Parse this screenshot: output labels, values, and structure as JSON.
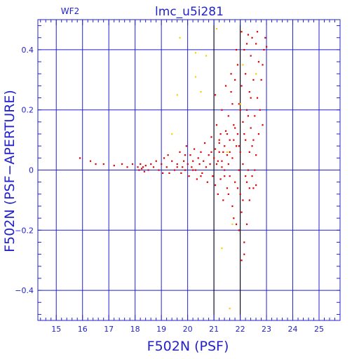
{
  "chart_data": {
    "type": "scatter",
    "title": "lmc_u5i281",
    "corner_label": "WF2",
    "xlabel": "F502N (PSF)",
    "ylabel": "F502N (PSF−APERTURE)",
    "xlim": [
      14.3,
      25.8
    ],
    "ylim": [
      -0.5,
      0.5
    ],
    "x_ticks": [
      15,
      16,
      17,
      18,
      19,
      20,
      21,
      22,
      23,
      24,
      25
    ],
    "y_ticks": [
      -0.4,
      -0.2,
      0,
      0.2,
      0.4
    ],
    "y_tick_labels": [
      "−0.4",
      "−0.2",
      "0",
      "0.2",
      "0.4"
    ],
    "grid": true,
    "reference_lines_x": [
      21.0,
      22.0
    ],
    "colors": {
      "axes": "#2222cc",
      "grid": "#2222cc",
      "reference": "#000000",
      "series_main": "#dd0000",
      "series_flagged": "#ffcc00"
    },
    "series": [
      {
        "color": "#dd0000",
        "points": [
          [
            15.9,
            0.04
          ],
          [
            16.3,
            0.03
          ],
          [
            16.5,
            0.02
          ],
          [
            16.8,
            0.02
          ],
          [
            17.2,
            0.015
          ],
          [
            17.5,
            0.02
          ],
          [
            17.7,
            0.01
          ],
          [
            17.9,
            0.02
          ],
          [
            18.1,
            0.01
          ],
          [
            18.15,
            0.0
          ],
          [
            18.2,
            0.02
          ],
          [
            18.25,
            0.005
          ],
          [
            18.3,
            0.01
          ],
          [
            18.35,
            -0.005
          ],
          [
            18.4,
            0.015
          ],
          [
            18.5,
            0.0
          ],
          [
            18.6,
            0.02
          ],
          [
            18.7,
            0.01
          ],
          [
            18.8,
            0.03
          ],
          [
            18.9,
            0.0
          ],
          [
            19.0,
            0.02
          ],
          [
            19.05,
            -0.01
          ],
          [
            19.1,
            0.04
          ],
          [
            19.2,
            0.01
          ],
          [
            19.25,
            0.05
          ],
          [
            19.3,
            -0.01
          ],
          [
            19.4,
            0.03
          ],
          [
            19.5,
            0.0
          ],
          [
            19.6,
            0.02
          ],
          [
            19.7,
            0.06
          ],
          [
            19.75,
            -0.01
          ],
          [
            19.8,
            0.01
          ],
          [
            19.85,
            0.03
          ],
          [
            19.9,
            0.0
          ],
          [
            19.95,
            0.08
          ],
          [
            20.0,
            0.02
          ],
          [
            20.05,
            -0.02
          ],
          [
            20.1,
            0.05
          ],
          [
            20.15,
            0.01
          ],
          [
            20.2,
            0.03
          ],
          [
            20.25,
            0.07
          ],
          [
            20.3,
            0.0
          ],
          [
            20.35,
            -0.03
          ],
          [
            20.4,
            0.04
          ],
          [
            20.45,
            0.02
          ],
          [
            20.5,
            0.06
          ],
          [
            20.55,
            -0.01
          ],
          [
            20.6,
            0.03
          ],
          [
            20.65,
            0.09
          ],
          [
            20.7,
            0.01
          ],
          [
            20.75,
            -0.04
          ],
          [
            20.8,
            0.05
          ],
          [
            20.85,
            0.02
          ],
          [
            20.9,
            0.11
          ],
          [
            20.95,
            -0.02
          ],
          [
            21.0,
            0.04
          ],
          [
            21.05,
            0.07
          ],
          [
            21.05,
            -0.05
          ],
          [
            21.1,
            0.02
          ],
          [
            21.1,
            0.15
          ],
          [
            21.15,
            -0.08
          ],
          [
            21.2,
            0.06
          ],
          [
            21.2,
            0.1
          ],
          [
            21.25,
            -0.03
          ],
          [
            21.3,
            0.03
          ],
          [
            21.3,
            0.2
          ],
          [
            21.35,
            -0.1
          ],
          [
            21.4,
            0.08
          ],
          [
            21.4,
            0.0
          ],
          [
            21.45,
            0.13
          ],
          [
            21.5,
            -0.06
          ],
          [
            21.5,
            0.05
          ],
          [
            21.55,
            0.18
          ],
          [
            21.6,
            -0.02
          ],
          [
            21.6,
            0.1
          ],
          [
            21.65,
            0.26
          ],
          [
            21.7,
            -0.12
          ],
          [
            21.7,
            0.04
          ],
          [
            21.75,
            0.15
          ],
          [
            21.8,
            0.3
          ],
          [
            21.8,
            -0.04
          ],
          [
            21.85,
            0.08
          ],
          [
            21.85,
            -0.18
          ],
          [
            21.9,
            0.12
          ],
          [
            21.9,
            0.35
          ],
          [
            21.95,
            0.0
          ],
          [
            21.95,
            0.22
          ],
          [
            22.0,
            -0.08
          ],
          [
            22.0,
            0.06
          ],
          [
            22.05,
            0.28
          ],
          [
            22.05,
            -0.14
          ],
          [
            22.1,
            0.16
          ],
          [
            22.1,
            0.02
          ],
          [
            22.15,
            0.4
          ],
          [
            22.15,
            -0.24
          ],
          [
            22.2,
            0.1
          ],
          [
            22.2,
            0.32
          ],
          [
            22.25,
            -0.04
          ],
          [
            22.25,
            0.2
          ],
          [
            22.3,
            0.45
          ],
          [
            22.3,
            0.0
          ],
          [
            22.35,
            -0.1
          ],
          [
            22.35,
            0.26
          ],
          [
            22.4,
            0.14
          ],
          [
            22.4,
            0.38
          ],
          [
            22.45,
            -0.02
          ],
          [
            22.45,
            0.08
          ],
          [
            22.5,
            0.3
          ],
          [
            22.5,
            -0.06
          ],
          [
            22.55,
            0.18
          ],
          [
            22.6,
            0.42
          ],
          [
            22.6,
            0.05
          ],
          [
            22.65,
            0.24
          ],
          [
            22.7,
            0.12
          ],
          [
            22.7,
            0.36
          ],
          [
            22.75,
            0.2
          ],
          [
            22.8,
            0.3
          ],
          [
            22.85,
            0.15
          ],
          [
            22.9,
            0.4
          ],
          [
            22.95,
            0.44
          ],
          [
            23.0,
            0.41
          ],
          [
            21.3,
            0.01
          ],
          [
            21.5,
            0.12
          ],
          [
            21.7,
            0.22
          ],
          [
            21.9,
            -0.06
          ],
          [
            22.1,
            -0.1
          ],
          [
            22.3,
            0.18
          ],
          [
            22.5,
            0.1
          ],
          [
            21.6,
            0.06
          ],
          [
            21.8,
            0.14
          ],
          [
            22.0,
            0.2
          ],
          [
            22.2,
            -0.02
          ],
          [
            22.4,
            0.24
          ],
          [
            21.4,
            -0.02
          ],
          [
            21.2,
            0.09
          ],
          [
            20.9,
            0.06
          ],
          [
            22.05,
            -0.3
          ],
          [
            21.95,
            -0.2
          ],
          [
            22.15,
            -0.28
          ],
          [
            21.75,
            -0.16
          ],
          [
            22.25,
            -0.18
          ],
          [
            21.55,
            -0.08
          ],
          [
            22.35,
            -0.06
          ],
          [
            20.5,
            -0.02
          ],
          [
            20.2,
            0.0
          ],
          [
            19.9,
            0.05
          ],
          [
            19.6,
            0.01
          ],
          [
            21.05,
            0.25
          ],
          [
            21.25,
            0.12
          ],
          [
            21.45,
            0.28
          ],
          [
            21.65,
            0.32
          ],
          [
            21.85,
            0.4
          ],
          [
            22.05,
            0.46
          ],
          [
            22.25,
            0.42
          ],
          [
            22.45,
            0.44
          ],
          [
            22.65,
            0.46
          ],
          [
            22.85,
            0.35
          ],
          [
            22.55,
            0.0
          ],
          [
            22.6,
            -0.05
          ],
          [
            22.35,
            0.06
          ],
          [
            22.15,
            0.12
          ],
          [
            21.95,
            0.08
          ],
          [
            21.75,
            0.1
          ],
          [
            21.55,
            0.02
          ],
          [
            21.35,
            0.06
          ],
          [
            21.15,
            0.03
          ]
        ]
      },
      {
        "color": "#ffcc00",
        "points": [
          [
            19.7,
            0.44
          ],
          [
            20.3,
            0.39
          ],
          [
            20.7,
            0.38
          ],
          [
            20.3,
            0.31
          ],
          [
            19.6,
            0.25
          ],
          [
            20.5,
            0.26
          ],
          [
            21.1,
            0.47
          ],
          [
            19.4,
            0.12
          ],
          [
            22.1,
            0.35
          ],
          [
            22.6,
            0.32
          ],
          [
            21.3,
            -0.26
          ],
          [
            21.6,
            -0.46
          ],
          [
            21.7,
            -0.18
          ],
          [
            22.0,
            0.22
          ],
          [
            21.5,
            0.06
          ]
        ]
      }
    ]
  }
}
